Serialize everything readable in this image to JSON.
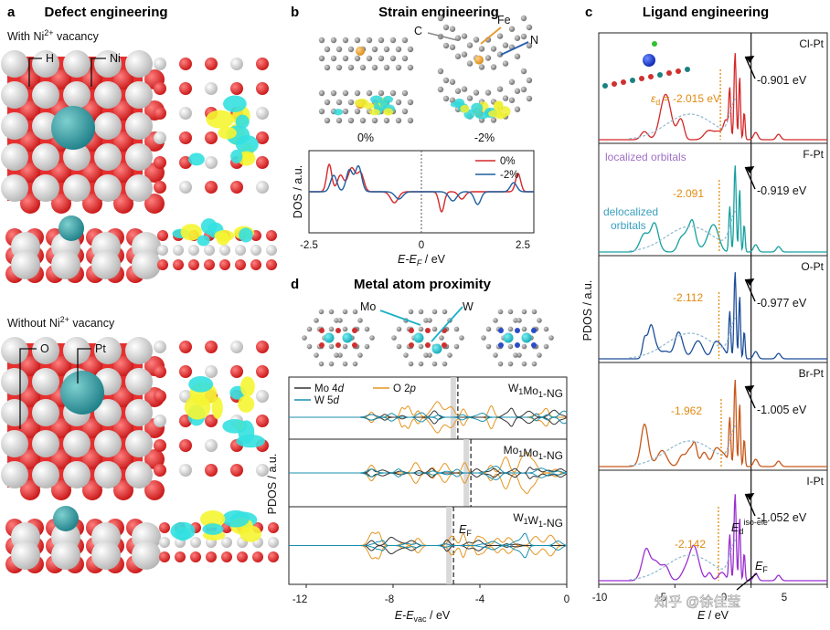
{
  "panels": {
    "a": {
      "letter": "a",
      "title": "Defect engineering",
      "with_label_pre": "With Ni",
      "with_label_sup": "2+",
      "with_label_post": " vacancy",
      "without_label_pre": "Without Ni",
      "without_label_sup": "2+",
      "without_label_post": " vacancy",
      "callouts": {
        "h": "H",
        "ni": "Ni",
        "o": "O",
        "pt": "Pt"
      }
    },
    "b": {
      "letter": "b",
      "title": "Strain engineering",
      "atom_labels": {
        "c": "C",
        "fe": "Fe",
        "n": "N"
      },
      "strain_labels": [
        "0%",
        "-2%"
      ],
      "ylabel": "DOS / a.u.",
      "xlabel_pre": "E",
      "xlabel_mid": "-E",
      "xlabel_sub": "F",
      "xlabel_post": " / eV",
      "xticks": [
        "-2.5",
        "0",
        "2.5"
      ]
    },
    "c": {
      "letter": "c",
      "title": "Ligand engineering",
      "ylabel": "PDOS / a.u.",
      "xticks": [
        "-10",
        "-5",
        "0",
        "5"
      ],
      "xlabel_pre": "E",
      "xlabel_post": " / eV",
      "ed_label_pre": "ε",
      "ed_label_sub": "d",
      "ed_label_post": " = -2.015 eV",
      "localized": "localized orbitals",
      "delocalized_1": "delocalized",
      "delocalized_2": "orbitals",
      "eiso_pre": "E",
      "eiso_sub": "d",
      "eiso_sup": "iso-ele",
      "ef_pre": "E",
      "ef_sub": "F",
      "watermark": "知乎 @徐佳莹"
    },
    "d": {
      "letter": "d",
      "title": "Metal atom proximity",
      "mo_label": "Mo",
      "w_label": "W",
      "ylabel": "PDOS / a.u.",
      "xticks": [
        "-12",
        "-8",
        "-4",
        "0"
      ],
      "xlabel_pre": "E",
      "xlabel_mid": "-E",
      "xlabel_sub": "vac",
      "xlabel_post": " / eV",
      "legend_mo_pre": "Mo 4",
      "legend_mo_it": "d",
      "legend_w_pre": "W 5",
      "legend_w_it": "d",
      "legend_o_pre": "O 2",
      "legend_o_it": "p",
      "ef_pre": "E",
      "ef_sub": "F"
    }
  },
  "chart_data": [
    {
      "type": "line",
      "panel": "b",
      "series": [
        {
          "name": "0%",
          "color": "#d62728"
        },
        {
          "name": "-2%",
          "color": "#1f5fa0"
        }
      ],
      "xlim": [
        -2.5,
        2.5
      ]
    },
    {
      "type": "line",
      "panel": "c",
      "xlim": [
        -10,
        5
      ],
      "subplots": [
        {
          "name": "Cl-Pt",
          "color": "#d62728",
          "ed": -2.015,
          "energy": "-0.901 eV"
        },
        {
          "name": "F-Pt",
          "color": "#17a0a0",
          "ed": -2.091,
          "energy": "-0.919 eV"
        },
        {
          "name": "O-Pt",
          "color": "#1f4e9a",
          "ed": -2.112,
          "energy": "-0.977 eV"
        },
        {
          "name": "Br-Pt",
          "color": "#c8581a",
          "ed": -1.962,
          "energy": "-1.005 eV"
        },
        {
          "name": "I-Pt",
          "color": "#9b30d0",
          "ed": -2.142,
          "energy": "-1.052 eV"
        }
      ],
      "ed_labels": [
        "-2.091",
        "-2.112",
        "-1.962",
        "-2.142"
      ]
    },
    {
      "type": "line",
      "panel": "d",
      "xlim": [
        -13,
        0
      ],
      "subplots": [
        {
          "name": "W₁Mo₁-NG",
          "name_parts": [
            "W",
            "1",
            "Mo",
            "1",
            "-NG"
          ]
        },
        {
          "name": "Mo₁Mo₁-NG",
          "name_parts": [
            "Mo",
            "1",
            "Mo",
            "1",
            "-NG"
          ]
        },
        {
          "name": "W₁W₁-NG",
          "name_parts": [
            "W",
            "1",
            "W",
            "1",
            "-NG"
          ]
        }
      ],
      "series": [
        {
          "name": "Mo 4d",
          "color": "#333333"
        },
        {
          "name": "W 5d",
          "color": "#1a8fb0"
        },
        {
          "name": "O 2p",
          "color": "#e69520"
        }
      ]
    }
  ]
}
